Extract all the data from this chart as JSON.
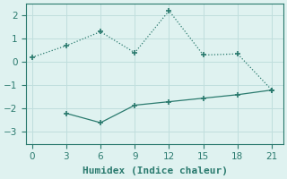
{
  "line1_x": [
    0,
    3,
    6,
    9,
    12,
    15,
    18,
    21
  ],
  "line1_y": [
    0.2,
    0.7,
    1.3,
    0.4,
    2.2,
    0.3,
    0.35,
    -1.2
  ],
  "line2_x": [
    3,
    6,
    9,
    12,
    15,
    18,
    21
  ],
  "line2_y": [
    -2.2,
    -2.6,
    -1.85,
    -1.7,
    -1.55,
    -1.4,
    -1.2
  ],
  "line_color": "#2a7a6e",
  "marker": "+",
  "markersize": 5,
  "markeredgewidth": 1.2,
  "linewidth": 0.9,
  "linestyle1": ":",
  "linestyle2": "-",
  "xlabel": "Humidex (Indice chaleur)",
  "xlim": [
    -0.5,
    22
  ],
  "ylim": [
    -3.5,
    2.5
  ],
  "xticks": [
    0,
    3,
    6,
    9,
    12,
    15,
    18,
    21
  ],
  "yticks": [
    -3,
    -2,
    -1,
    0,
    1,
    2
  ],
  "background_color": "#dff2f0",
  "grid_color": "#c0dedd",
  "xlabel_fontsize": 8,
  "tick_fontsize": 7.5
}
